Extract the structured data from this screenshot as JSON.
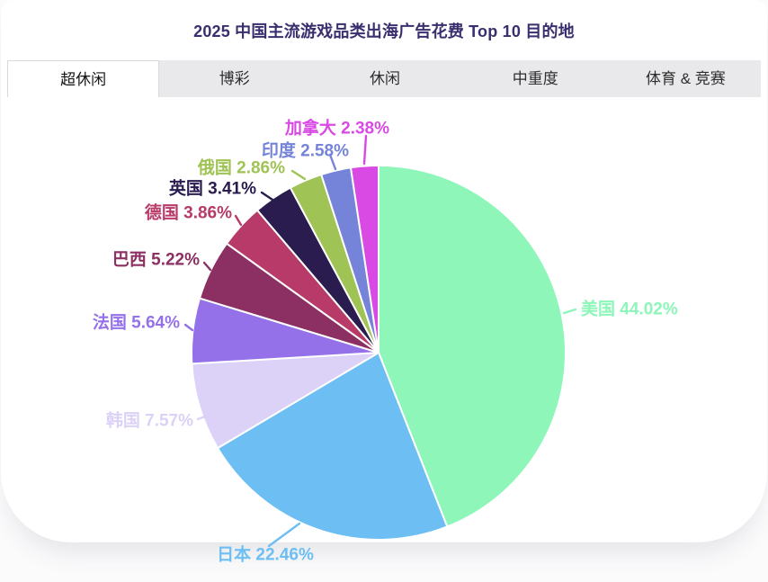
{
  "header": {
    "title": "2025 中国主流游戏品类出海广告花费 Top 10 目的地",
    "title_color": "#3a2e6e"
  },
  "tabs": {
    "active_index": 0,
    "items": [
      {
        "label": "超休闲"
      },
      {
        "label": "博彩"
      },
      {
        "label": "休闲"
      },
      {
        "label": "中重度"
      },
      {
        "label": "体育 & 竞赛"
      }
    ]
  },
  "chart_data": {
    "type": "pie",
    "title": "2025 中国主流游戏品类出海广告花费 Top 10 目的地",
    "unit": "%",
    "start_angle_deg": 0,
    "direction": "clockwise",
    "legend_position": "none",
    "labels_outside": true,
    "slices": [
      {
        "label": "美国",
        "value": 44.02,
        "color": "#8df6b8"
      },
      {
        "label": "日本",
        "value": 22.46,
        "color": "#6cbef3"
      },
      {
        "label": "韩国",
        "value": 7.57,
        "color": "#dcd1f6"
      },
      {
        "label": "法国",
        "value": 5.64,
        "color": "#9571e9"
      },
      {
        "label": "巴西",
        "value": 5.22,
        "color": "#8c2f63"
      },
      {
        "label": "德国",
        "value": 3.86,
        "color": "#b73a69"
      },
      {
        "label": "英国",
        "value": 3.41,
        "color": "#2a1c4e"
      },
      {
        "label": "俄国",
        "value": 2.86,
        "color": "#a0c355"
      },
      {
        "label": "印度",
        "value": 2.58,
        "color": "#7584d8"
      },
      {
        "label": "加拿大",
        "value": 2.38,
        "color": "#d94ae4"
      }
    ]
  }
}
